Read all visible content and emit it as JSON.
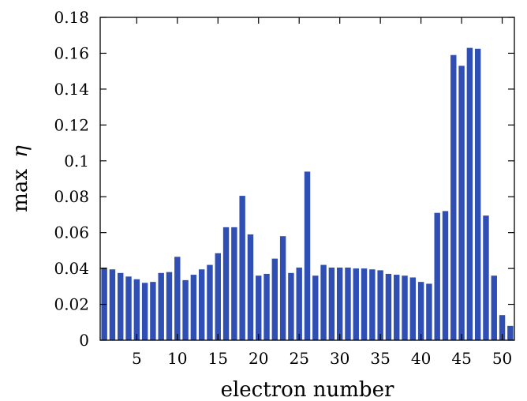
{
  "chart_data": {
    "type": "bar",
    "xlabel": "electron number",
    "ylabel": "max η",
    "ylabel_parts": {
      "text": "max",
      "symbol": "η"
    },
    "xlim": [
      0.5,
      51.5
    ],
    "ylim": [
      0,
      0.18
    ],
    "yticks": [
      0,
      0.02,
      0.04,
      0.06,
      0.08,
      0.1,
      0.12,
      0.14,
      0.16,
      0.18
    ],
    "ytick_labels": [
      "0",
      "0.02",
      "0.04",
      "0.06",
      "0.08",
      "0.1",
      "0.12",
      "0.14",
      "0.16",
      "0.18"
    ],
    "xticks": [
      5,
      10,
      15,
      20,
      25,
      30,
      35,
      40,
      45,
      50
    ],
    "xtick_labels": [
      "5",
      "10",
      "15",
      "20",
      "25",
      "30",
      "35",
      "40",
      "45",
      "50"
    ],
    "bar_color": "#2f4fb4",
    "grid": false,
    "x": [
      1,
      2,
      3,
      4,
      5,
      6,
      7,
      8,
      9,
      10,
      11,
      12,
      13,
      14,
      15,
      16,
      17,
      18,
      19,
      20,
      21,
      22,
      23,
      24,
      25,
      26,
      27,
      28,
      29,
      30,
      31,
      32,
      33,
      34,
      35,
      36,
      37,
      38,
      39,
      40,
      41,
      42,
      43,
      44,
      45,
      46,
      47,
      48,
      49,
      50,
      51
    ],
    "values": [
      0.0405,
      0.0395,
      0.0375,
      0.0355,
      0.034,
      0.032,
      0.0325,
      0.0375,
      0.038,
      0.0465,
      0.0335,
      0.0365,
      0.0395,
      0.042,
      0.0485,
      0.063,
      0.063,
      0.0805,
      0.059,
      0.036,
      0.037,
      0.0455,
      0.058,
      0.0375,
      0.0405,
      0.094,
      0.036,
      0.042,
      0.0405,
      0.0405,
      0.0405,
      0.04,
      0.04,
      0.0395,
      0.039,
      0.037,
      0.0365,
      0.036,
      0.035,
      0.0325,
      0.0315,
      0.071,
      0.072,
      0.159,
      0.153,
      0.163,
      0.1625,
      0.0695,
      0.036,
      0.014,
      0.008
    ]
  }
}
